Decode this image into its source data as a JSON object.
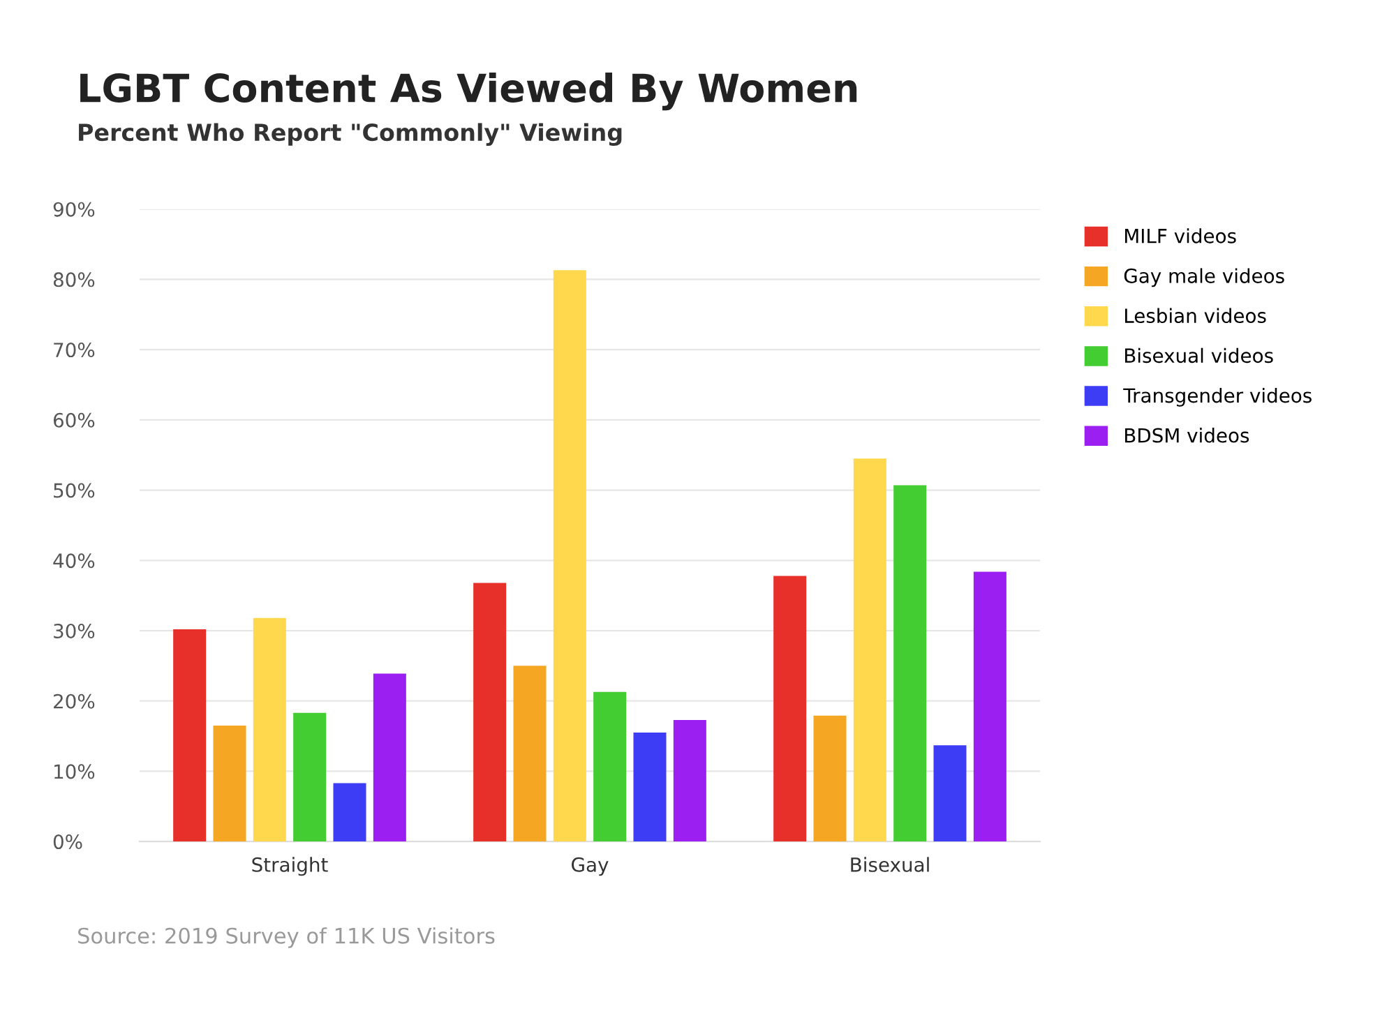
{
  "chart_data": {
    "type": "bar",
    "title": "LGBT Content As Viewed By Women",
    "subtitle": "Percent Who Report \"Commonly\" Viewing",
    "categories": [
      "Straight",
      "Gay",
      "Bisexual"
    ],
    "series": [
      {
        "name": "MILF videos",
        "color": "#e8302a",
        "values": [
          30.2,
          36.8,
          37.8
        ]
      },
      {
        "name": "Gay male videos",
        "color": "#f5a623",
        "values": [
          16.5,
          25.0,
          17.9
        ]
      },
      {
        "name": "Lesbian videos",
        "color": "#ffd84d",
        "values": [
          31.8,
          81.3,
          54.5
        ]
      },
      {
        "name": "Bisexual videos",
        "color": "#44cc33",
        "values": [
          18.3,
          21.3,
          50.7
        ]
      },
      {
        "name": "Transgender videos",
        "color": "#3d3df5",
        "values": [
          8.3,
          15.5,
          13.7
        ]
      },
      {
        "name": "BDSM videos",
        "color": "#9b1ff0",
        "values": [
          23.9,
          17.3,
          38.4
        ]
      }
    ],
    "ylim": [
      0,
      90
    ],
    "yticks": [
      {
        "value": 0,
        "label": "0%"
      },
      {
        "value": 10,
        "label": "10%"
      },
      {
        "value": 20,
        "label": "20%"
      },
      {
        "value": 30,
        "label": "30%"
      },
      {
        "value": 40,
        "label": "40%"
      },
      {
        "value": 50,
        "label": "50%"
      },
      {
        "value": 60,
        "label": "60%"
      },
      {
        "value": 70,
        "label": "70%"
      },
      {
        "value": 80,
        "label": "80%"
      },
      {
        "value": 90,
        "label": "90%"
      }
    ],
    "grid": "y",
    "legend": "top right",
    "annotations": [
      "Source: 2019 Survey of 11K US Visitors"
    ]
  }
}
